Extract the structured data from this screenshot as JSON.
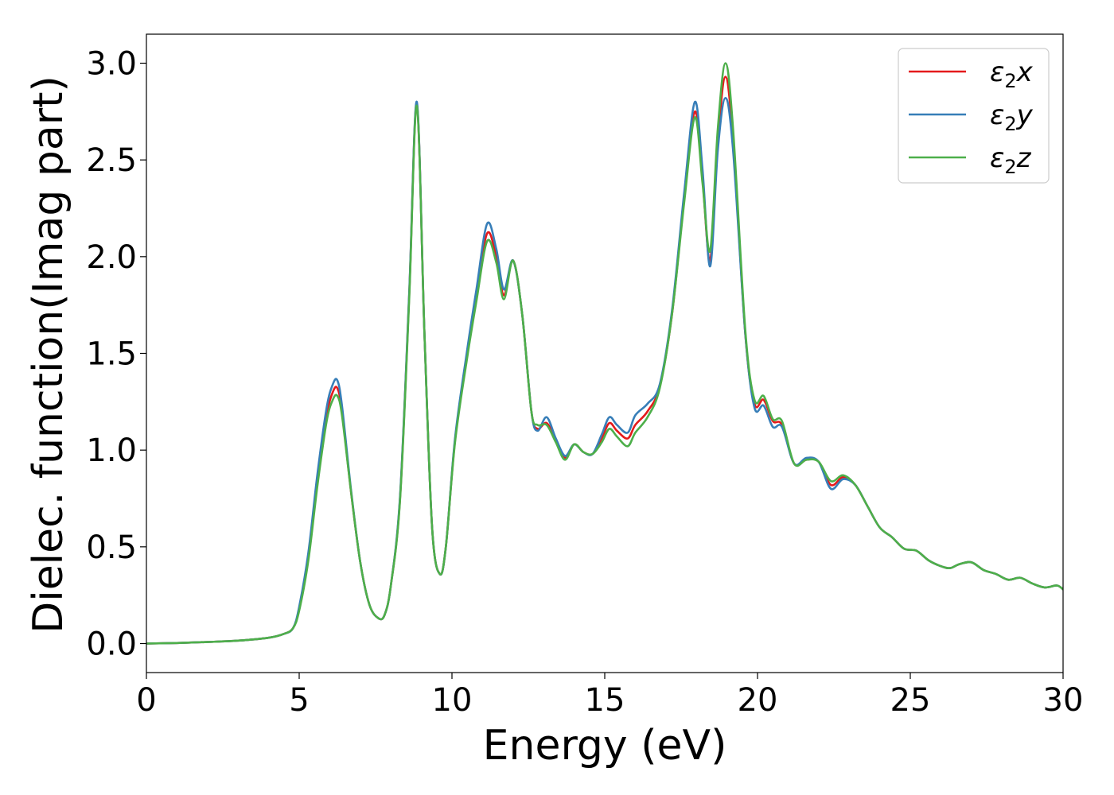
{
  "chart_data": {
    "type": "line",
    "title": "",
    "xlabel": "Energy (eV)",
    "ylabel": "Dielec. function(Imag part)",
    "xlim": [
      0,
      30
    ],
    "ylim": [
      -0.15,
      3.15
    ],
    "xticks": [
      0,
      5,
      10,
      15,
      20,
      25,
      30
    ],
    "xtick_labels": [
      "0",
      "5",
      "10",
      "15",
      "20",
      "25",
      "30"
    ],
    "yticks": [
      0.0,
      0.5,
      1.0,
      1.5,
      2.0,
      2.5,
      3.0
    ],
    "ytick_labels": [
      "0.0",
      "0.5",
      "1.0",
      "1.5",
      "2.0",
      "2.5",
      "3.0"
    ],
    "grid": false,
    "legend_position": "top-right",
    "series": [
      {
        "name": "ε₂x",
        "legend_base": "ε",
        "legend_sub": "2",
        "legend_var": "x",
        "color": "#e41a1c",
        "x": [
          0,
          1,
          2,
          3,
          4,
          4.5,
          4.8,
          5.0,
          5.3,
          5.6,
          5.9,
          6.1,
          6.25,
          6.4,
          6.7,
          7.0,
          7.3,
          7.6,
          7.8,
          8.0,
          8.3,
          8.6,
          8.85,
          9.1,
          9.35,
          9.6,
          9.8,
          10.1,
          10.5,
          10.8,
          11.15,
          11.45,
          11.7,
          12.0,
          12.3,
          12.6,
          12.8,
          13.1,
          13.4,
          13.7,
          14.0,
          14.3,
          14.6,
          14.9,
          15.15,
          15.4,
          15.75,
          16.0,
          16.4,
          16.8,
          17.2,
          17.6,
          17.95,
          18.2,
          18.45,
          18.7,
          18.95,
          19.2,
          19.6,
          19.9,
          20.2,
          20.5,
          20.8,
          21.2,
          21.6,
          22.0,
          22.4,
          22.8,
          23.2,
          23.6,
          24.0,
          24.4,
          24.8,
          25.2,
          25.6,
          26.0,
          26.3,
          26.6,
          27.0,
          27.4,
          27.8,
          28.2,
          28.6,
          29.0,
          29.4,
          29.8,
          30.0
        ],
        "y": [
          0.0,
          0.003,
          0.008,
          0.015,
          0.03,
          0.05,
          0.08,
          0.18,
          0.45,
          0.85,
          1.18,
          1.3,
          1.32,
          1.2,
          0.78,
          0.42,
          0.2,
          0.13,
          0.15,
          0.3,
          0.75,
          1.8,
          2.79,
          1.6,
          0.6,
          0.36,
          0.5,
          1.05,
          1.5,
          1.8,
          2.12,
          2.0,
          1.8,
          1.98,
          1.7,
          1.2,
          1.11,
          1.14,
          1.05,
          0.96,
          1.03,
          0.99,
          0.98,
          1.06,
          1.14,
          1.1,
          1.06,
          1.13,
          1.2,
          1.33,
          1.7,
          2.3,
          2.75,
          2.4,
          1.98,
          2.6,
          2.93,
          2.6,
          1.6,
          1.24,
          1.26,
          1.15,
          1.13,
          0.93,
          0.95,
          0.94,
          0.82,
          0.86,
          0.82,
          0.71,
          0.6,
          0.55,
          0.49,
          0.48,
          0.43,
          0.4,
          0.39,
          0.41,
          0.42,
          0.38,
          0.36,
          0.33,
          0.34,
          0.31,
          0.29,
          0.3,
          0.28
        ]
      },
      {
        "name": "ε₂y",
        "legend_base": "ε",
        "legend_sub": "2",
        "legend_var": "y",
        "color": "#377eb8",
        "x": [
          0,
          1,
          2,
          3,
          4,
          4.5,
          4.8,
          5.0,
          5.3,
          5.6,
          5.9,
          6.1,
          6.25,
          6.4,
          6.7,
          7.0,
          7.3,
          7.6,
          7.8,
          8.0,
          8.3,
          8.6,
          8.85,
          9.1,
          9.35,
          9.6,
          9.8,
          10.1,
          10.5,
          10.8,
          11.15,
          11.45,
          11.7,
          12.0,
          12.3,
          12.6,
          12.8,
          13.1,
          13.4,
          13.7,
          14.0,
          14.3,
          14.6,
          14.9,
          15.15,
          15.4,
          15.75,
          16.0,
          16.4,
          16.8,
          17.2,
          17.6,
          17.95,
          18.2,
          18.45,
          18.7,
          18.95,
          19.2,
          19.6,
          19.9,
          20.2,
          20.5,
          20.8,
          21.2,
          21.6,
          22.0,
          22.4,
          22.8,
          23.2,
          23.6,
          24.0,
          24.4,
          24.8,
          25.2,
          25.6,
          26.0,
          26.3,
          26.6,
          27.0,
          27.4,
          27.8,
          28.2,
          28.6,
          29.0,
          29.4,
          29.8,
          30.0
        ],
        "y": [
          0.0,
          0.003,
          0.008,
          0.015,
          0.03,
          0.05,
          0.08,
          0.19,
          0.47,
          0.88,
          1.22,
          1.34,
          1.36,
          1.23,
          0.79,
          0.42,
          0.2,
          0.13,
          0.15,
          0.3,
          0.76,
          1.81,
          2.8,
          1.6,
          0.6,
          0.36,
          0.5,
          1.06,
          1.52,
          1.83,
          2.17,
          2.04,
          1.83,
          1.98,
          1.7,
          1.2,
          1.1,
          1.17,
          1.06,
          0.97,
          1.03,
          0.99,
          0.98,
          1.08,
          1.17,
          1.13,
          1.09,
          1.18,
          1.24,
          1.34,
          1.72,
          2.33,
          2.8,
          2.45,
          1.95,
          2.55,
          2.82,
          2.55,
          1.6,
          1.22,
          1.23,
          1.12,
          1.12,
          0.93,
          0.96,
          0.94,
          0.8,
          0.85,
          0.82,
          0.71,
          0.6,
          0.55,
          0.49,
          0.48,
          0.43,
          0.4,
          0.39,
          0.41,
          0.42,
          0.38,
          0.36,
          0.33,
          0.34,
          0.31,
          0.29,
          0.3,
          0.28
        ]
      },
      {
        "name": "ε₂z",
        "legend_base": "ε",
        "legend_sub": "2",
        "legend_var": "z",
        "color": "#4daf4a",
        "x": [
          0,
          1,
          2,
          3,
          4,
          4.5,
          4.8,
          5.0,
          5.3,
          5.6,
          5.9,
          6.1,
          6.25,
          6.4,
          6.7,
          7.0,
          7.3,
          7.6,
          7.8,
          8.0,
          8.3,
          8.6,
          8.85,
          9.1,
          9.35,
          9.6,
          9.8,
          10.1,
          10.5,
          10.8,
          11.15,
          11.45,
          11.7,
          12.0,
          12.3,
          12.6,
          12.8,
          13.1,
          13.4,
          13.7,
          14.0,
          14.3,
          14.6,
          14.9,
          15.15,
          15.4,
          15.75,
          16.0,
          16.4,
          16.8,
          17.2,
          17.6,
          17.95,
          18.2,
          18.45,
          18.7,
          18.95,
          19.2,
          19.6,
          19.9,
          20.2,
          20.5,
          20.8,
          21.2,
          21.6,
          22.0,
          22.4,
          22.8,
          23.2,
          23.6,
          24.0,
          24.4,
          24.8,
          25.2,
          25.6,
          26.0,
          26.3,
          26.6,
          27.0,
          27.4,
          27.8,
          28.2,
          28.6,
          29.0,
          29.4,
          29.8,
          30.0
        ],
        "y": [
          0.0,
          0.003,
          0.008,
          0.015,
          0.03,
          0.05,
          0.08,
          0.17,
          0.43,
          0.82,
          1.15,
          1.26,
          1.28,
          1.18,
          0.78,
          0.42,
          0.2,
          0.13,
          0.15,
          0.3,
          0.74,
          1.78,
          2.78,
          1.6,
          0.6,
          0.36,
          0.5,
          1.04,
          1.48,
          1.77,
          2.08,
          1.97,
          1.78,
          1.98,
          1.7,
          1.2,
          1.13,
          1.13,
          1.04,
          0.95,
          1.03,
          0.99,
          0.98,
          1.04,
          1.11,
          1.07,
          1.02,
          1.09,
          1.17,
          1.32,
          1.7,
          2.28,
          2.72,
          2.38,
          2.03,
          2.66,
          3.0,
          2.66,
          1.62,
          1.26,
          1.28,
          1.16,
          1.15,
          0.93,
          0.95,
          0.94,
          0.84,
          0.87,
          0.82,
          0.71,
          0.6,
          0.55,
          0.49,
          0.48,
          0.43,
          0.4,
          0.39,
          0.41,
          0.42,
          0.38,
          0.36,
          0.33,
          0.34,
          0.31,
          0.29,
          0.3,
          0.28
        ]
      }
    ]
  }
}
